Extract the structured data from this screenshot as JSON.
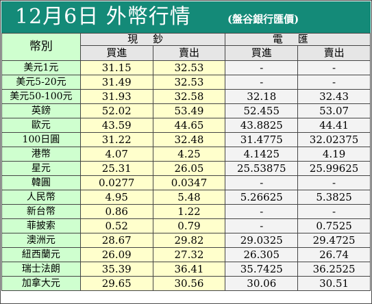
{
  "header": {
    "title": "12月6日 外幣行情",
    "subtitle": "(盤谷銀行匯價)"
  },
  "table": {
    "currency_header": "幣別",
    "cash_header": "現鈔",
    "remit_header": "電匯",
    "buy_label": "買進",
    "sell_label": "賣出",
    "rows": [
      {
        "name": "美元1元",
        "cash_buy": "31.15",
        "cash_sell": "32.53",
        "remit_buy": "-",
        "remit_sell": "-"
      },
      {
        "name": "美元5-20元",
        "cash_buy": "31.49",
        "cash_sell": "32.53",
        "remit_buy": "-",
        "remit_sell": "-"
      },
      {
        "name": "美元50-100元",
        "cash_buy": "31.93",
        "cash_sell": "32.58",
        "remit_buy": "32.18",
        "remit_sell": "32.43"
      },
      {
        "name": "英鎊",
        "cash_buy": "52.02",
        "cash_sell": "53.49",
        "remit_buy": "52.455",
        "remit_sell": "53.07"
      },
      {
        "name": "歐元",
        "cash_buy": "43.59",
        "cash_sell": "44.65",
        "remit_buy": "43.8825",
        "remit_sell": "44.41"
      },
      {
        "name": "100日圓",
        "cash_buy": "31.22",
        "cash_sell": "32.48",
        "remit_buy": "31.4775",
        "remit_sell": "32.02375"
      },
      {
        "name": "港幣",
        "cash_buy": "4.07",
        "cash_sell": "4.25",
        "remit_buy": "4.1425",
        "remit_sell": "4.19"
      },
      {
        "name": "星元",
        "cash_buy": "25.31",
        "cash_sell": "26.05",
        "remit_buy": "25.53875",
        "remit_sell": "25.99625"
      },
      {
        "name": "韓圓",
        "cash_buy": "0.0277",
        "cash_sell": "0.0347",
        "remit_buy": "-",
        "remit_sell": "-"
      },
      {
        "name": "人民幣",
        "cash_buy": "4.95",
        "cash_sell": "5.48",
        "remit_buy": "5.26625",
        "remit_sell": "5.3825"
      },
      {
        "name": "新台幣",
        "cash_buy": "0.86",
        "cash_sell": "1.22",
        "remit_buy": "-",
        "remit_sell": "-"
      },
      {
        "name": "菲披索",
        "cash_buy": "0.52",
        "cash_sell": "0.79",
        "remit_buy": "-",
        "remit_sell": "0.7525"
      },
      {
        "name": "澳洲元",
        "cash_buy": "28.67",
        "cash_sell": "29.82",
        "remit_buy": "29.0325",
        "remit_sell": "29.4725"
      },
      {
        "name": "紐西蘭元",
        "cash_buy": "26.09",
        "cash_sell": "27.32",
        "remit_buy": "26.305",
        "remit_sell": "26.74"
      },
      {
        "name": "瑞士法朗",
        "cash_buy": "35.39",
        "cash_sell": "36.41",
        "remit_buy": "35.7425",
        "remit_sell": "36.2525"
      },
      {
        "name": "加拿大元",
        "cash_buy": "29.65",
        "cash_sell": "30.56",
        "remit_buy": "30.06",
        "remit_sell": "30.51"
      }
    ]
  }
}
